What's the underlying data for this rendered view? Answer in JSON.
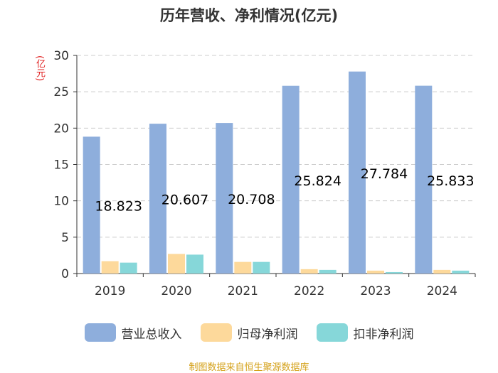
{
  "chart_data": {
    "type": "bar",
    "title": "历年营收、净利情况(亿元)",
    "ylabel": "(亿元)",
    "xlabel": "",
    "categories": [
      "2019",
      "2020",
      "2021",
      "2022",
      "2023",
      "2024"
    ],
    "ylim": [
      0,
      30
    ],
    "yticks": [
      0,
      5,
      10,
      15,
      20,
      25,
      30
    ],
    "grid": true,
    "legend_position": "bottom",
    "series": [
      {
        "name": "营业总收入",
        "color": "#8eaedc",
        "values": [
          18.823,
          20.607,
          20.708,
          25.824,
          27.784,
          25.833
        ],
        "labels": [
          "18.823",
          "20.607",
          "20.708",
          "25.824",
          "27.784",
          "25.833"
        ]
      },
      {
        "name": "归母净利润",
        "color": "#fdd99b",
        "values": [
          1.7,
          2.7,
          1.6,
          0.6,
          0.4,
          0.5
        ]
      },
      {
        "name": "扣非净利润",
        "color": "#86d7d9",
        "values": [
          1.5,
          2.6,
          1.6,
          0.5,
          0.2,
          0.4
        ]
      }
    ]
  },
  "source_text": "制图数据来自恒生聚源数据库"
}
